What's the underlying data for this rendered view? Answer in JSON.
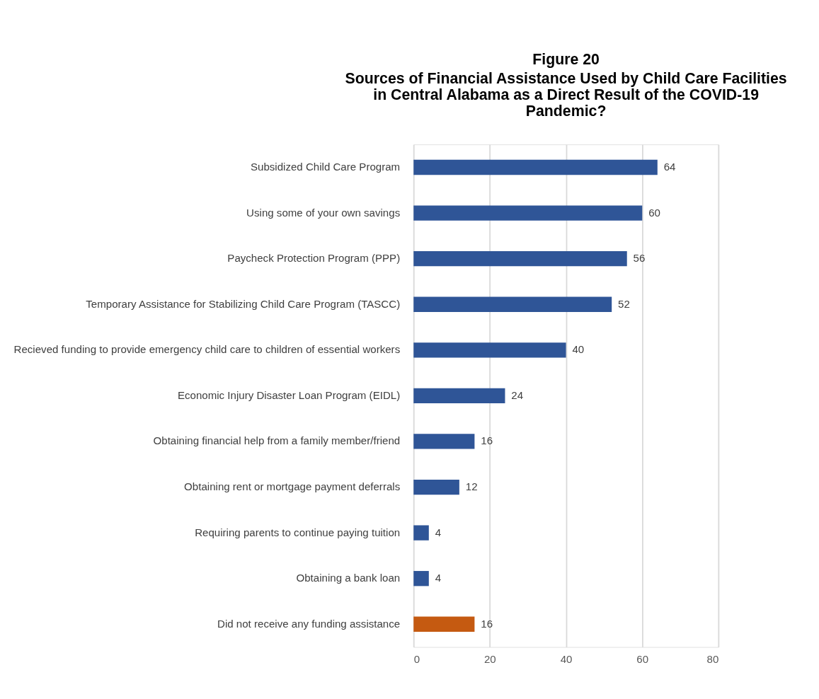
{
  "chart_data": {
    "type": "bar",
    "orientation": "horizontal",
    "title": "Figure 20",
    "subtitle": "Sources of Financial Assistance Used by Child Care Facilities in Central Alabama as a Direct Result of the COVID-19 Pandemic?",
    "categories": [
      "Subsidized Child Care Program",
      "Using some of your own savings",
      "Paycheck Protection Program (PPP)",
      "Temporary Assistance for Stabilizing Child Care Program (TASCC)",
      "Recieved funding to provide emergency child care to children of essential workers",
      "Economic Injury Disaster Loan Program (EIDL)",
      "Obtaining financial help from a family member/friend",
      "Obtaining rent or mortgage payment deferrals",
      "Requiring parents to continue paying tuition",
      "Obtaining a bank loan",
      "Did not receive any funding assistance"
    ],
    "values": [
      64,
      60,
      56,
      52,
      40,
      24,
      16,
      12,
      4,
      4,
      16
    ],
    "colors": [
      "#2f5597",
      "#2f5597",
      "#2f5597",
      "#2f5597",
      "#2f5597",
      "#2f5597",
      "#2f5597",
      "#2f5597",
      "#2f5597",
      "#2f5597",
      "#c55a11"
    ],
    "xlim": [
      0,
      80
    ],
    "xticks": [
      0,
      20,
      40,
      60,
      80
    ],
    "grid": "x",
    "data_labels": true
  }
}
